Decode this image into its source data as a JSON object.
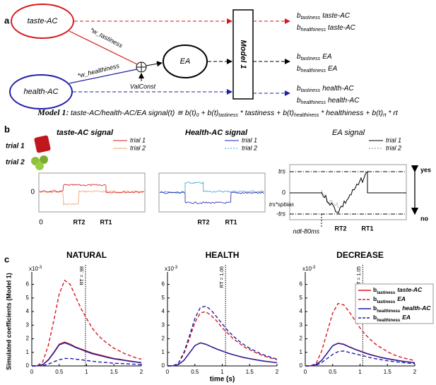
{
  "panel_a": {
    "label": "a",
    "taste_node": "taste-AC",
    "health_node": "health-AC",
    "w_tastiness": "*w_tastiness",
    "w_healthiness": "*w_healthiness",
    "valconst": "ValConst",
    "ea_node": "EA",
    "model_box": "Model 1",
    "outputs": [
      {
        "symbol": "b",
        "sub": "tastiness",
        "name": "taste-AC"
      },
      {
        "symbol": "b",
        "sub": "healthiness",
        "name": "taste-AC"
      },
      {
        "symbol": "b",
        "sub": "tastiness",
        "name": "EA"
      },
      {
        "symbol": "b",
        "sub": "healthiness",
        "name": "EA"
      },
      {
        "symbol": "b",
        "sub": "tastiness",
        "name": "health-AC"
      },
      {
        "symbol": "b",
        "sub": "healthiness",
        "name": "health-AC"
      }
    ]
  },
  "equation": {
    "label": "Model 1",
    "colon": ":",
    "parts": [
      {
        "text": "taste-AC/health-AC/EA signal(t) ≅ b(t)",
        "sub": "0"
      },
      {
        "text": " + b(t)",
        "sub": "tastiness"
      },
      {
        "text": " * tastiness + b(t)",
        "sub": "healthiness"
      },
      {
        "text": " * healthiness + b(t)",
        "sub": "rt"
      },
      {
        "text": " * rt"
      }
    ]
  },
  "panel_b": {
    "label": "b",
    "trial_labels": [
      "trial 1",
      "trial 2"
    ],
    "taste": {
      "title": "taste-AC signal",
      "legend": [
        "trial 1",
        "trial 2"
      ],
      "y_zero": "0",
      "x_zero": "0",
      "rt_labels": [
        "RT2",
        "RT1"
      ]
    },
    "health": {
      "title": "Health-AC signal",
      "legend": [
        "trial 1",
        "trial 2"
      ],
      "rt_labels": [
        "RT2",
        "RT1"
      ]
    },
    "ea": {
      "title": "EA signal",
      "legend": [
        "trial 1",
        "trial 2"
      ],
      "levels": [
        "trs",
        "0",
        "trs*spbias",
        "-trs"
      ],
      "ndt": "ndt-80ms",
      "rt_labels": [
        "RT2",
        "RT1"
      ],
      "yes": "yes",
      "no": "no"
    }
  },
  "panel_c": {
    "label": "c"
  },
  "chart_data": [
    {
      "type": "line",
      "title": "NATURAL",
      "scale_label": "x10",
      "scale_exp": "-3",
      "ylabel": "Simulated coefficients (Model 1)",
      "x": [
        0,
        0.1,
        0.2,
        0.3,
        0.4,
        0.5,
        0.6,
        0.7,
        0.8,
        0.9,
        1,
        1.1,
        1.2,
        1.3,
        1.4,
        1.5,
        1.6,
        1.7,
        1.8,
        1.9,
        2
      ],
      "xlim": [
        0,
        2
      ],
      "xticks": [
        0,
        0.5,
        1,
        1.5,
        2
      ],
      "ylim": [
        0,
        6.5
      ],
      "yticks": [
        0,
        1,
        2,
        3,
        4,
        5,
        6
      ],
      "rt": {
        "x": 0.98,
        "label": "RT = .98"
      },
      "series": [
        {
          "symbol": "b",
          "sub": "tastiness",
          "name": "taste-AC",
          "color": "#d7191c",
          "dashed": false,
          "values": [
            0,
            0.01,
            0.1,
            0.45,
            1.0,
            1.6,
            1.75,
            1.6,
            1.4,
            1.25,
            1.1,
            0.95,
            0.85,
            0.75,
            0.65,
            0.55,
            0.5,
            0.42,
            0.36,
            0.3,
            0.25
          ]
        },
        {
          "symbol": "b",
          "sub": "tastiness",
          "name": "EA",
          "color": "#d7191c",
          "dashed": true,
          "values": [
            0,
            0.02,
            0.3,
            1.5,
            3.3,
            5.3,
            6.3,
            6.0,
            5.1,
            4.2,
            3.5,
            2.8,
            2.3,
            1.9,
            1.6,
            1.3,
            1.1,
            0.9,
            0.75,
            0.6,
            0.5
          ]
        },
        {
          "symbol": "b",
          "sub": "healthiness",
          "name": "health-AC",
          "color": "#1f1fa8",
          "dashed": false,
          "values": [
            0,
            0.01,
            0.1,
            0.42,
            0.95,
            1.55,
            1.7,
            1.55,
            1.35,
            1.2,
            1.05,
            0.9,
            0.8,
            0.7,
            0.6,
            0.52,
            0.46,
            0.4,
            0.34,
            0.28,
            0.23
          ]
        },
        {
          "symbol": "b",
          "sub": "healthiness",
          "name": "EA",
          "color": "#1f1fa8",
          "dashed": true,
          "values": [
            0,
            0,
            0.03,
            0.13,
            0.3,
            0.45,
            0.55,
            0.55,
            0.5,
            0.45,
            0.4,
            0.35,
            0.3,
            0.27,
            0.24,
            0.2,
            0.18,
            0.16,
            0.14,
            0.12,
            0.1
          ]
        }
      ]
    },
    {
      "type": "line",
      "title": "HEALTH",
      "scale_label": "x10",
      "scale_exp": "-3",
      "xlabel": "time (s)",
      "x": [
        0,
        0.1,
        0.2,
        0.3,
        0.4,
        0.5,
        0.6,
        0.7,
        0.8,
        0.9,
        1,
        1.1,
        1.2,
        1.3,
        1.4,
        1.5,
        1.6,
        1.7,
        1.8,
        1.9,
        2
      ],
      "xlim": [
        0,
        2
      ],
      "xticks": [
        0,
        0.5,
        1,
        1.5,
        2
      ],
      "ylim": [
        0,
        6.5
      ],
      "yticks": [
        0,
        1,
        2,
        3,
        4,
        5,
        6
      ],
      "rt": {
        "x": 1.06,
        "label": "RT = 1.06"
      },
      "series": [
        {
          "symbol": "b",
          "sub": "tastiness",
          "name": "taste-AC",
          "color": "#d7191c",
          "dashed": false,
          "values": [
            0,
            0.01,
            0.1,
            0.42,
            0.95,
            1.5,
            1.7,
            1.6,
            1.42,
            1.25,
            1.1,
            0.95,
            0.83,
            0.72,
            0.62,
            0.54,
            0.47,
            0.4,
            0.34,
            0.29,
            0.24
          ]
        },
        {
          "symbol": "b",
          "sub": "tastiness",
          "name": "EA",
          "color": "#d7191c",
          "dashed": true,
          "values": [
            0,
            0.01,
            0.18,
            0.9,
            2.0,
            3.2,
            3.9,
            4.0,
            3.7,
            3.3,
            2.8,
            2.4,
            2.0,
            1.7,
            1.4,
            1.2,
            1.0,
            0.82,
            0.68,
            0.56,
            0.46
          ]
        },
        {
          "symbol": "b",
          "sub": "healthiness",
          "name": "health-AC",
          "color": "#1f1fa8",
          "dashed": false,
          "values": [
            0,
            0.01,
            0.1,
            0.41,
            0.94,
            1.49,
            1.69,
            1.59,
            1.41,
            1.24,
            1.09,
            0.94,
            0.82,
            0.71,
            0.61,
            0.53,
            0.46,
            0.39,
            0.33,
            0.28,
            0.23
          ]
        },
        {
          "symbol": "b",
          "sub": "healthiness",
          "name": "EA",
          "color": "#1f1fa8",
          "dashed": true,
          "values": [
            0,
            0.01,
            0.2,
            1.0,
            2.2,
            3.5,
            4.3,
            4.4,
            4.1,
            3.6,
            3.1,
            2.6,
            2.2,
            1.85,
            1.55,
            1.3,
            1.1,
            0.9,
            0.75,
            0.62,
            0.5
          ]
        }
      ]
    },
    {
      "type": "line",
      "title": "DECREASE",
      "scale_label": "x10",
      "scale_exp": "-3",
      "x": [
        0,
        0.1,
        0.2,
        0.3,
        0.4,
        0.5,
        0.6,
        0.7,
        0.8,
        0.9,
        1,
        1.1,
        1.2,
        1.3,
        1.4,
        1.5,
        1.6,
        1.7,
        1.8,
        1.9,
        2
      ],
      "xlim": [
        0,
        2
      ],
      "xticks": [
        0,
        0.5,
        1,
        1.5,
        2
      ],
      "ylim": [
        0,
        6.5
      ],
      "yticks": [
        0,
        1,
        2,
        3,
        4,
        5,
        6
      ],
      "rt": {
        "x": 1.05,
        "label": "RT = 1.05"
      },
      "legend": "upper right",
      "series": [
        {
          "symbol": "b",
          "sub": "tastiness",
          "name": "taste-AC",
          "color": "#d7191c",
          "dashed": false,
          "values": [
            0,
            0.01,
            0.1,
            0.42,
            0.95,
            1.5,
            1.68,
            1.6,
            1.42,
            1.25,
            1.1,
            0.95,
            0.83,
            0.72,
            0.62,
            0.54,
            0.47,
            0.4,
            0.34,
            0.29,
            0.24
          ]
        },
        {
          "symbol": "b",
          "sub": "tastiness",
          "name": "EA",
          "color": "#d7191c",
          "dashed": true,
          "values": [
            0,
            0.01,
            0.2,
            1.1,
            2.5,
            3.9,
            4.6,
            4.5,
            4.0,
            3.4,
            2.8,
            2.3,
            1.9,
            1.55,
            1.3,
            1.05,
            0.85,
            0.7,
            0.58,
            0.48,
            0.4
          ]
        },
        {
          "symbol": "b",
          "sub": "healthiness",
          "name": "health-AC",
          "color": "#1f1fa8",
          "dashed": false,
          "values": [
            0,
            0.01,
            0.1,
            0.41,
            0.93,
            1.48,
            1.66,
            1.58,
            1.4,
            1.23,
            1.08,
            0.93,
            0.81,
            0.7,
            0.6,
            0.52,
            0.45,
            0.39,
            0.33,
            0.28,
            0.23
          ]
        },
        {
          "symbol": "b",
          "sub": "healthiness",
          "name": "EA",
          "color": "#1f1fa8",
          "dashed": true,
          "values": [
            0,
            0,
            0.05,
            0.25,
            0.55,
            0.85,
            1.05,
            1.1,
            1.0,
            0.9,
            0.8,
            0.7,
            0.6,
            0.52,
            0.45,
            0.38,
            0.33,
            0.28,
            0.24,
            0.2,
            0.17
          ]
        }
      ]
    }
  ]
}
